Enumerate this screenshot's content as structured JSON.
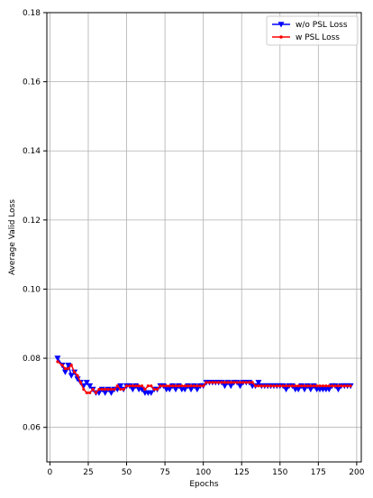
{
  "chart_data": {
    "type": "line",
    "title": "",
    "xlabel": "Epochs",
    "ylabel": "Average Valid Loss",
    "xlim": [
      -2,
      203
    ],
    "ylim": [
      0.05,
      0.18
    ],
    "xticks": [
      0,
      25,
      50,
      75,
      100,
      125,
      150,
      175,
      200
    ],
    "yticks": [
      0.06,
      0.08,
      0.1,
      0.12,
      0.14,
      0.16,
      0.18
    ],
    "ytick_labels": [
      "0.06",
      "0.08",
      "0.10",
      "0.12",
      "0.14",
      "0.16",
      "0.18"
    ],
    "grid": true,
    "legend_position": "top-right",
    "series": [
      {
        "name": "w/o PSL Loss",
        "color": "#0000ff",
        "marker": "triangle-down",
        "x": [
          5,
          8,
          10,
          12,
          14,
          16,
          18,
          20,
          22,
          24,
          26,
          28,
          30,
          32,
          34,
          36,
          38,
          40,
          42,
          44,
          46,
          48,
          50,
          52,
          54,
          56,
          58,
          60,
          62,
          64,
          66,
          68,
          70,
          72,
          74,
          76,
          78,
          80,
          82,
          84,
          86,
          88,
          90,
          92,
          94,
          96,
          98,
          100,
          102,
          104,
          106,
          108,
          110,
          112,
          114,
          116,
          118,
          120,
          122,
          124,
          126,
          128,
          130,
          132,
          134,
          136,
          138,
          140,
          142,
          144,
          146,
          148,
          150,
          152,
          154,
          156,
          158,
          160,
          162,
          164,
          166,
          168,
          170,
          172,
          174,
          176,
          178,
          180,
          182,
          184,
          186,
          188,
          190,
          192,
          194,
          196
        ],
        "y": [
          0.08,
          0.078,
          0.076,
          0.078,
          0.075,
          0.076,
          0.074,
          0.073,
          0.072,
          0.073,
          0.072,
          0.071,
          0.07,
          0.07,
          0.071,
          0.07,
          0.071,
          0.07,
          0.071,
          0.071,
          0.072,
          0.071,
          0.072,
          0.072,
          0.071,
          0.072,
          0.071,
          0.071,
          0.07,
          0.07,
          0.07,
          0.071,
          0.071,
          0.072,
          0.072,
          0.071,
          0.071,
          0.072,
          0.071,
          0.072,
          0.071,
          0.071,
          0.072,
          0.071,
          0.072,
          0.071,
          0.072,
          0.072,
          0.073,
          0.073,
          0.073,
          0.073,
          0.073,
          0.073,
          0.072,
          0.073,
          0.072,
          0.073,
          0.073,
          0.072,
          0.073,
          0.073,
          0.073,
          0.072,
          0.072,
          0.073,
          0.072,
          0.072,
          0.072,
          0.072,
          0.072,
          0.072,
          0.072,
          0.072,
          0.071,
          0.072,
          0.072,
          0.071,
          0.071,
          0.072,
          0.071,
          0.072,
          0.071,
          0.072,
          0.071,
          0.071,
          0.071,
          0.071,
          0.071,
          0.072,
          0.072,
          0.071,
          0.072,
          0.072,
          0.072,
          0.072
        ]
      },
      {
        "name": "w PSL Loss",
        "color": "#ff0000",
        "marker": "dot",
        "x": [
          5,
          8,
          10,
          12,
          14,
          16,
          18,
          20,
          22,
          24,
          26,
          28,
          30,
          32,
          34,
          36,
          38,
          40,
          42,
          44,
          46,
          48,
          50,
          52,
          54,
          56,
          58,
          60,
          62,
          64,
          66,
          68,
          70,
          72,
          74,
          76,
          78,
          80,
          82,
          84,
          86,
          88,
          90,
          92,
          94,
          96,
          98,
          100,
          102,
          104,
          106,
          108,
          110,
          112,
          114,
          116,
          118,
          120,
          122,
          124,
          126,
          128,
          130,
          132,
          134,
          136,
          138,
          140,
          142,
          144,
          146,
          148,
          150,
          152,
          154,
          156,
          158,
          160,
          162,
          164,
          166,
          168,
          170,
          172,
          174,
          176,
          178,
          180,
          182,
          184,
          186,
          188,
          190,
          192,
          194,
          196
        ],
        "y": [
          0.079,
          0.078,
          0.077,
          0.077,
          0.078,
          0.076,
          0.075,
          0.073,
          0.071,
          0.07,
          0.07,
          0.071,
          0.07,
          0.071,
          0.071,
          0.071,
          0.071,
          0.071,
          0.071,
          0.072,
          0.071,
          0.071,
          0.072,
          0.072,
          0.072,
          0.072,
          0.072,
          0.072,
          0.071,
          0.072,
          0.072,
          0.071,
          0.071,
          0.072,
          0.072,
          0.072,
          0.072,
          0.072,
          0.072,
          0.072,
          0.072,
          0.072,
          0.072,
          0.072,
          0.072,
          0.072,
          0.072,
          0.072,
          0.073,
          0.073,
          0.073,
          0.073,
          0.073,
          0.073,
          0.073,
          0.073,
          0.073,
          0.073,
          0.073,
          0.073,
          0.073,
          0.073,
          0.073,
          0.073,
          0.072,
          0.072,
          0.072,
          0.072,
          0.072,
          0.072,
          0.072,
          0.072,
          0.072,
          0.072,
          0.072,
          0.072,
          0.072,
          0.072,
          0.072,
          0.072,
          0.072,
          0.072,
          0.072,
          0.072,
          0.072,
          0.072,
          0.072,
          0.072,
          0.072,
          0.072,
          0.072,
          0.072,
          0.072,
          0.072,
          0.072,
          0.072
        ]
      }
    ]
  }
}
